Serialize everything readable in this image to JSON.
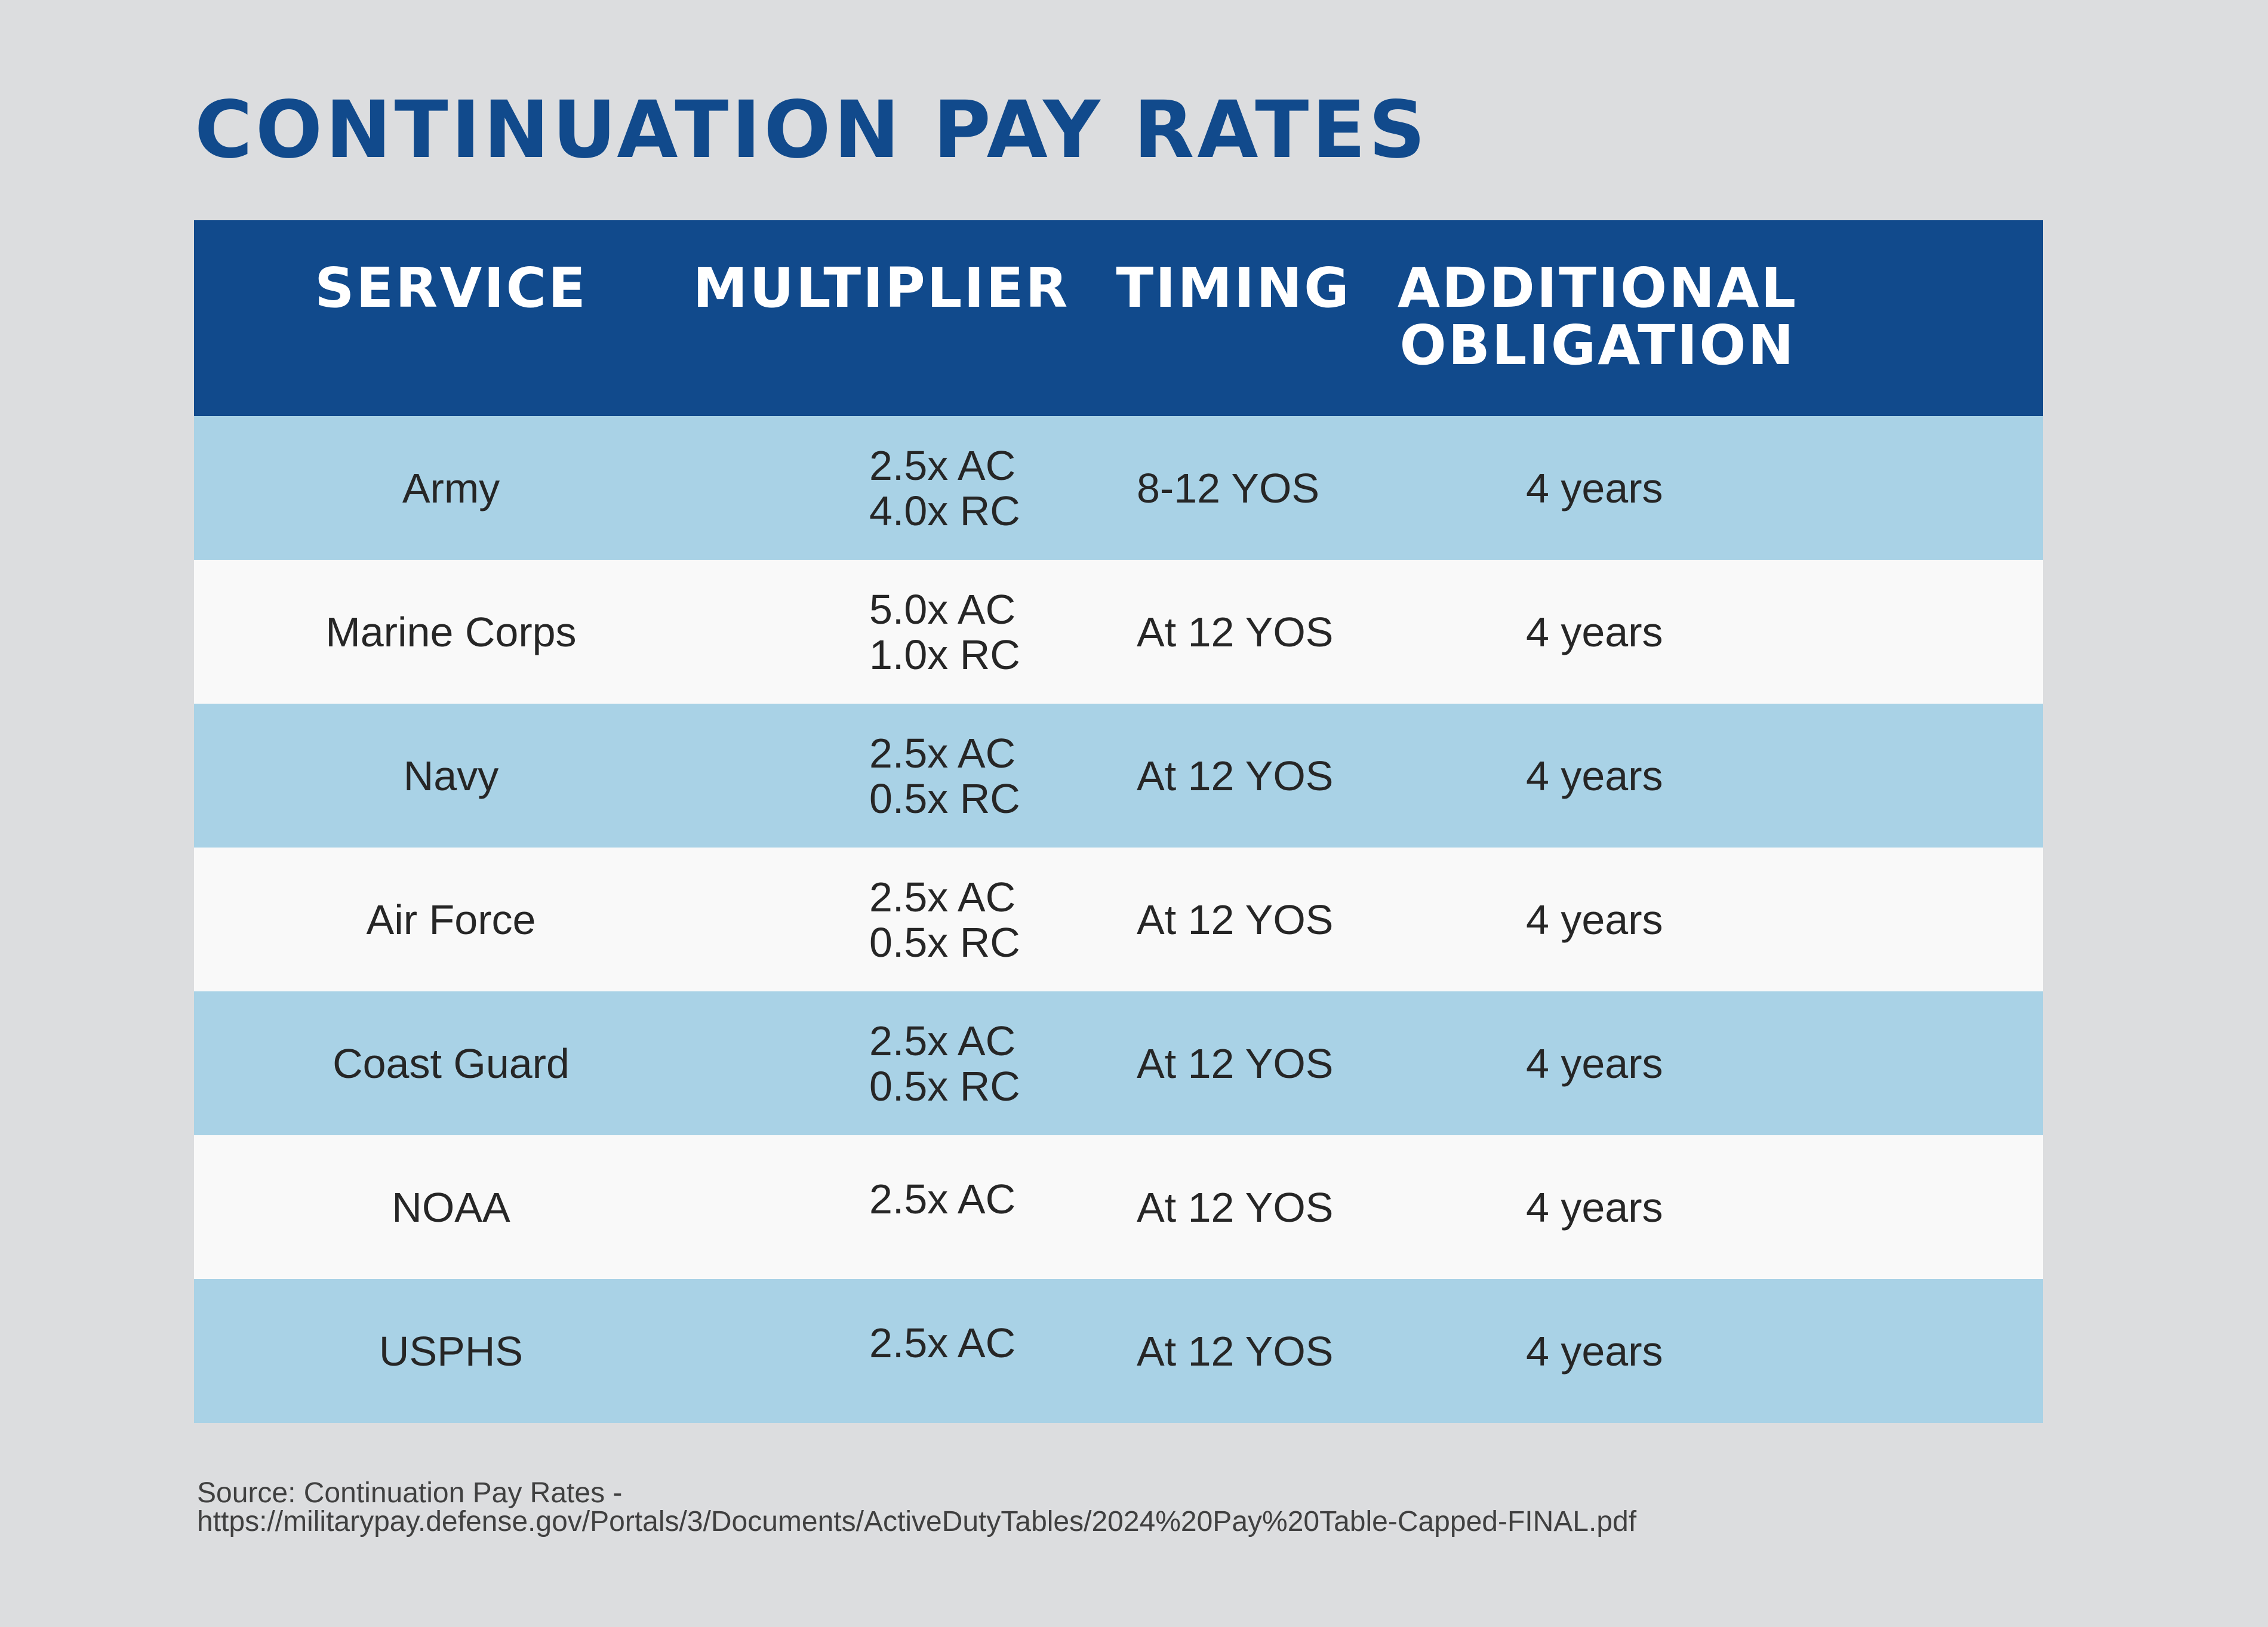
{
  "title": "CONTINUATION PAY RATES",
  "table": {
    "headers": {
      "service": "SERVICE",
      "multiplier": "MULTIPLIER",
      "timing": "TIMING",
      "obligation_line1": "ADDITIONAL",
      "obligation_line2": "OBLIGATION"
    },
    "rows": [
      {
        "service": "Army",
        "multiplier_ac": "2.5x AC",
        "multiplier_rc": "4.0x RC",
        "timing": "8-12 YOS",
        "obligation": "4 years"
      },
      {
        "service": "Marine Corps",
        "multiplier_ac": "5.0x AC",
        "multiplier_rc": "1.0x RC",
        "timing": "At 12 YOS",
        "obligation": "4 years"
      },
      {
        "service": "Navy",
        "multiplier_ac": "2.5x AC",
        "multiplier_rc": "0.5x RC",
        "timing": "At 12 YOS",
        "obligation": "4 years"
      },
      {
        "service": "Air Force",
        "multiplier_ac": "2.5x AC",
        "multiplier_rc": "0.5x RC",
        "timing": "At 12 YOS",
        "obligation": "4 years"
      },
      {
        "service": "Coast Guard",
        "multiplier_ac": "2.5x AC",
        "multiplier_rc": "0.5x RC",
        "timing": "At 12 YOS",
        "obligation": "4 years"
      },
      {
        "service": "NOAA",
        "multiplier_ac": "2.5x AC",
        "multiplier_rc": "",
        "timing": "At 12 YOS",
        "obligation": "4 years"
      },
      {
        "service": "USPHS",
        "multiplier_ac": "2.5x AC",
        "multiplier_rc": "",
        "timing": "At 12 YOS",
        "obligation": "4 years"
      }
    ]
  },
  "source": {
    "line1": "Source: Continuation Pay Rates -",
    "line2": "https://militarypay.defense.gov/Portals/3/Documents/ActiveDutyTables/2024%20Pay%20Table-Capped-FINAL.pdf"
  },
  "colors": {
    "title": "#114a8c",
    "header_bg": "#114a8c",
    "row_shaded": "#a9d2e6",
    "row_plain": "#f9f9f9",
    "page_bg": "#dcdddf"
  }
}
